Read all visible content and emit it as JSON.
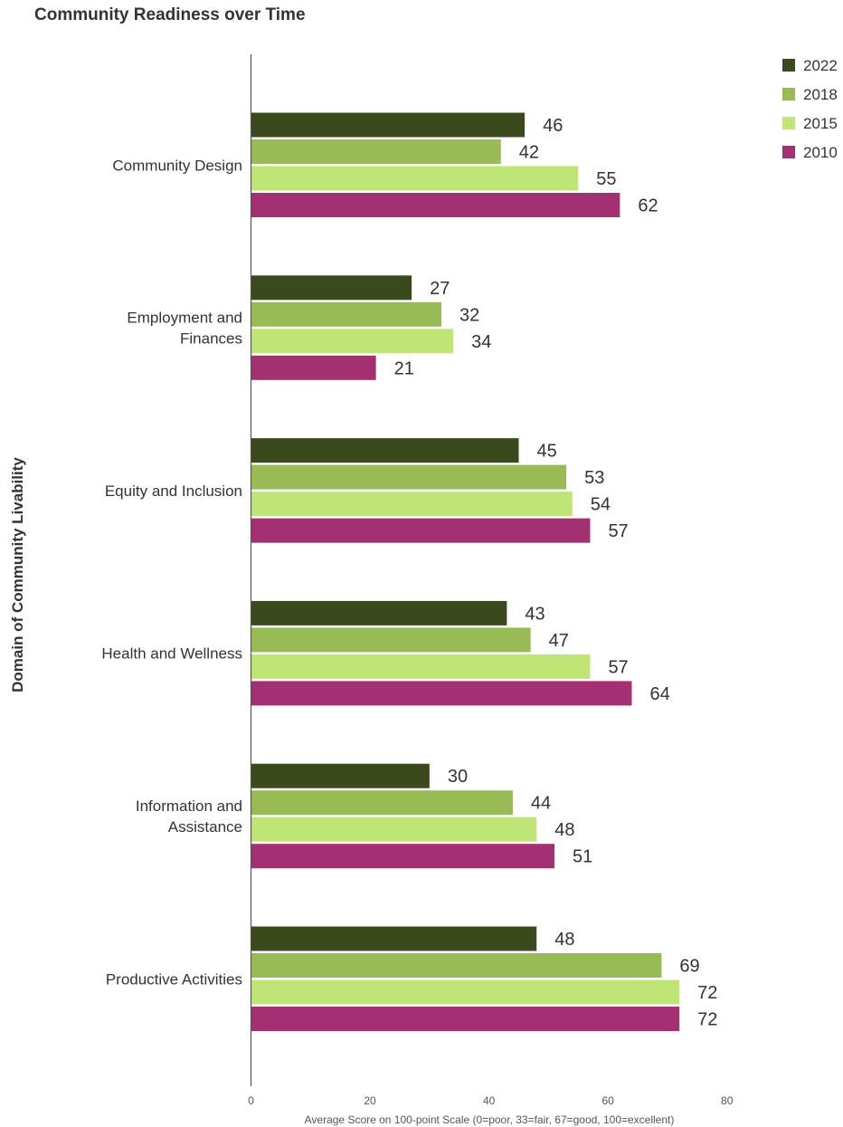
{
  "chart_data": {
    "type": "bar",
    "orientation": "horizontal",
    "title": "Community Readiness over Time",
    "xlabel": "Average Score on 100-point Scale (0=poor, 33=fair, 67=good, 100=excellent)",
    "ylabel": "Domain of Community Livability",
    "xlim": [
      0,
      80
    ],
    "xticks": [
      "0",
      "20",
      "40",
      "60",
      "80"
    ],
    "grid": false,
    "legend_position": "top-right",
    "categories": [
      [
        "Community Design"
      ],
      [
        "Employment and",
        "Finances"
      ],
      [
        "Equity and Inclusion"
      ],
      [
        "Health and Wellness"
      ],
      [
        "Information and",
        "Assistance"
      ],
      [
        "Productive Activities"
      ]
    ],
    "series": [
      {
        "name": "2022",
        "color": "#3a4a1c",
        "values": [
          46,
          27,
          45,
          43,
          30,
          48
        ]
      },
      {
        "name": "2018",
        "color": "#99bb55",
        "values": [
          42,
          32,
          53,
          47,
          44,
          69
        ]
      },
      {
        "name": "2015",
        "color": "#bfe675",
        "values": [
          55,
          34,
          54,
          57,
          48,
          72
        ]
      },
      {
        "name": "2010",
        "color": "#a33070",
        "values": [
          62,
          21,
          57,
          64,
          51,
          72
        ]
      }
    ]
  }
}
